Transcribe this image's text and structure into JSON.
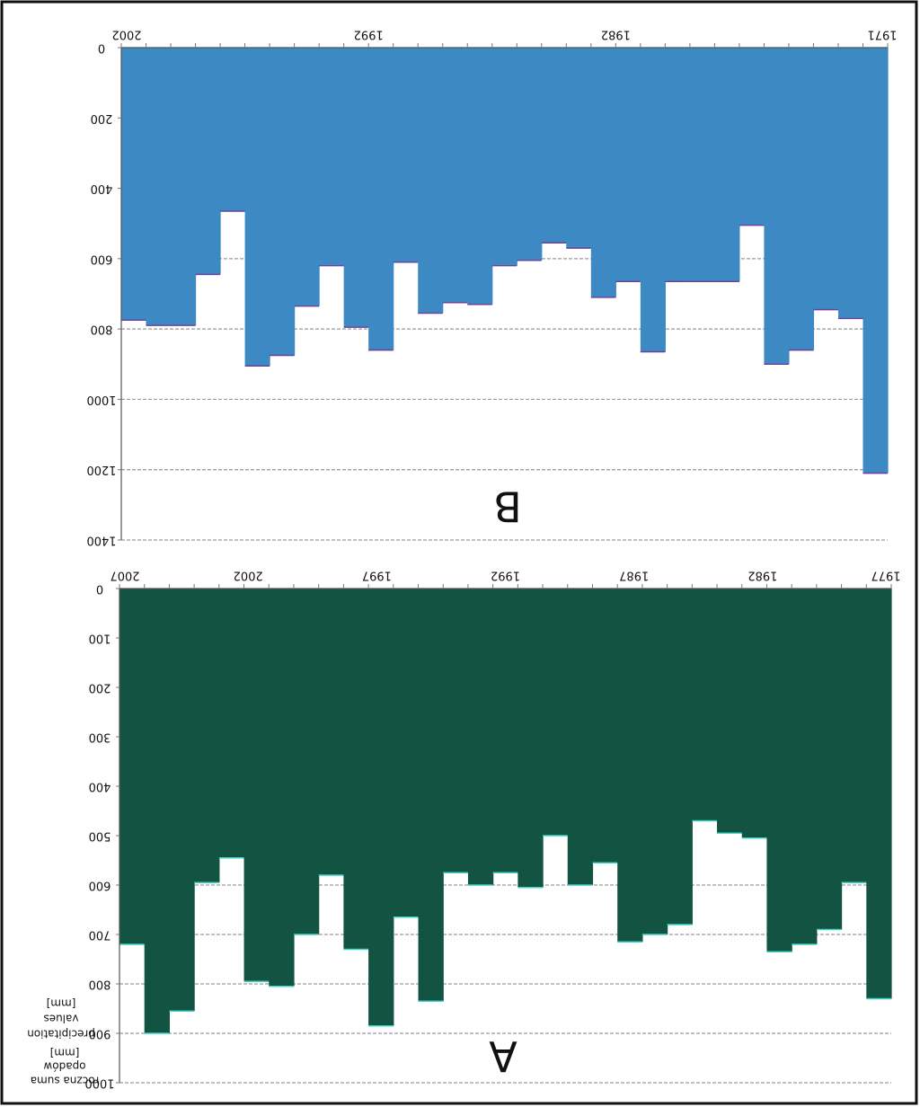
{
  "figure": {
    "mirrored": true,
    "side_label_a": [
      "roczna suma",
      "opadów",
      "[mm]"
    ],
    "side_label_b": [
      "precipitation",
      "values",
      "[mm]"
    ]
  },
  "chart_data": [
    {
      "id": "B",
      "type": "bar",
      "panel_label": "B",
      "title": "",
      "fill_color": "#3d89c4",
      "edge_color": "#6a3fa0",
      "x_start": 2002,
      "x_end": 1971,
      "x_ticks": [
        {
          "label": "2002",
          "x": 2002
        },
        {
          "label": "1992",
          "x": 1992
        },
        {
          "label": "1982",
          "x": 1982
        },
        {
          "label": "1971",
          "x": 1971
        }
      ],
      "y_ticks": [
        0,
        200,
        400,
        600,
        800,
        1000,
        1200,
        1400
      ],
      "grid_lines": [
        600,
        800,
        1000,
        1200,
        1400
      ],
      "ylim": [
        0,
        1400
      ],
      "y_inverted": true,
      "values": [
        775,
        790,
        790,
        645,
        465,
        905,
        875,
        735,
        620,
        795,
        860,
        610,
        755,
        725,
        730,
        620,
        605,
        555,
        570,
        710,
        665,
        865,
        665,
        665,
        665,
        505,
        900,
        860,
        745,
        770,
        1210
      ]
    },
    {
      "id": "A",
      "type": "bar",
      "panel_label": "A",
      "title": "",
      "fill_color": "#125341",
      "edge_color": "#3fd6c8",
      "x_start": 2007,
      "x_end": 1977,
      "x_ticks": [
        {
          "label": "2007",
          "x": 2007
        },
        {
          "label": "2002",
          "x": 2002
        },
        {
          "label": "1997",
          "x": 1997
        },
        {
          "label": "1992",
          "x": 1992
        },
        {
          "label": "1987",
          "x": 1987
        },
        {
          "label": "1982",
          "x": 1982
        },
        {
          "label": "1977",
          "x": 1977
        }
      ],
      "y_ticks": [
        0,
        100,
        200,
        300,
        400,
        500,
        600,
        700,
        800,
        900,
        1000
      ],
      "grid_lines": [
        600,
        700,
        800,
        900,
        1000
      ],
      "ylim": [
        0,
        1000
      ],
      "y_inverted": true,
      "values": [
        720,
        900,
        855,
        595,
        545,
        795,
        805,
        700,
        580,
        730,
        885,
        665,
        835,
        575,
        600,
        575,
        605,
        500,
        600,
        555,
        715,
        700,
        680,
        470,
        495,
        505,
        735,
        720,
        690,
        595,
        830
      ]
    }
  ]
}
